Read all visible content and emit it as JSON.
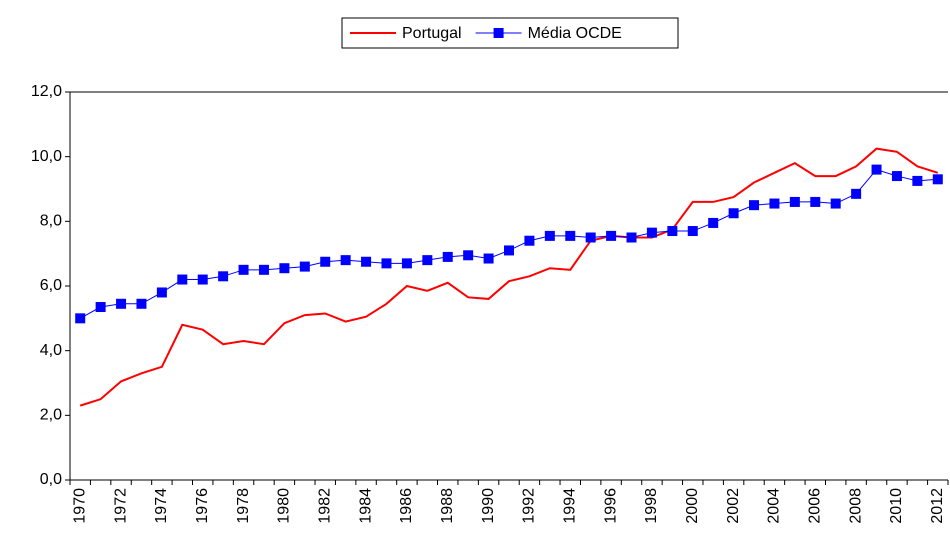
{
  "chart_data": {
    "type": "line",
    "categories": [
      "1970",
      null,
      "1972",
      null,
      "1974",
      null,
      "1976",
      null,
      "1978",
      null,
      "1980",
      null,
      "1982",
      null,
      "1984",
      null,
      "1986",
      null,
      "1988",
      null,
      "1990",
      null,
      "1992",
      null,
      "1994",
      null,
      "1996",
      null,
      "1998",
      null,
      "2000",
      null,
      "2002",
      null,
      "2004",
      null,
      "2006",
      null,
      "2008",
      null,
      "2010",
      null,
      "2012"
    ],
    "series": [
      {
        "name": "Portugal",
        "color": "#ff0000",
        "marker": "none",
        "values": [
          2.3,
          2.5,
          3.05,
          3.3,
          3.5,
          4.8,
          4.65,
          4.2,
          4.3,
          4.2,
          4.85,
          5.1,
          5.15,
          4.9,
          5.05,
          5.45,
          6.0,
          5.85,
          6.1,
          5.65,
          5.6,
          6.15,
          6.3,
          6.55,
          6.5,
          7.4,
          7.55,
          7.5,
          7.5,
          7.75,
          8.6,
          8.6,
          8.75,
          9.2,
          9.5,
          9.8,
          9.4,
          9.4,
          9.7,
          10.25,
          10.15,
          9.7,
          9.5
        ]
      },
      {
        "name": "Média OCDE",
        "color": "#0000ff",
        "marker": "square",
        "values": [
          5.0,
          5.35,
          5.45,
          5.45,
          5.8,
          6.2,
          6.2,
          6.3,
          6.5,
          6.5,
          6.55,
          6.6,
          6.75,
          6.8,
          6.75,
          6.7,
          6.7,
          6.8,
          6.9,
          6.95,
          6.85,
          7.1,
          7.4,
          7.55,
          7.55,
          7.5,
          7.55,
          7.5,
          7.65,
          7.7,
          7.7,
          7.95,
          8.25,
          8.5,
          8.55,
          8.6,
          8.6,
          8.55,
          8.85,
          9.6,
          9.4,
          9.25,
          9.3
        ]
      }
    ],
    "ylim": [
      0,
      12
    ],
    "yticks": [
      {
        "value": 0,
        "label": "0,0"
      },
      {
        "value": 2,
        "label": "2,0"
      },
      {
        "value": 4,
        "label": "4,0"
      },
      {
        "value": 6,
        "label": "6,0"
      },
      {
        "value": 8,
        "label": "8,0"
      },
      {
        "value": 10,
        "label": "10,0"
      },
      {
        "value": 12,
        "label": "12,0"
      }
    ],
    "grid": false,
    "legend": "top"
  }
}
